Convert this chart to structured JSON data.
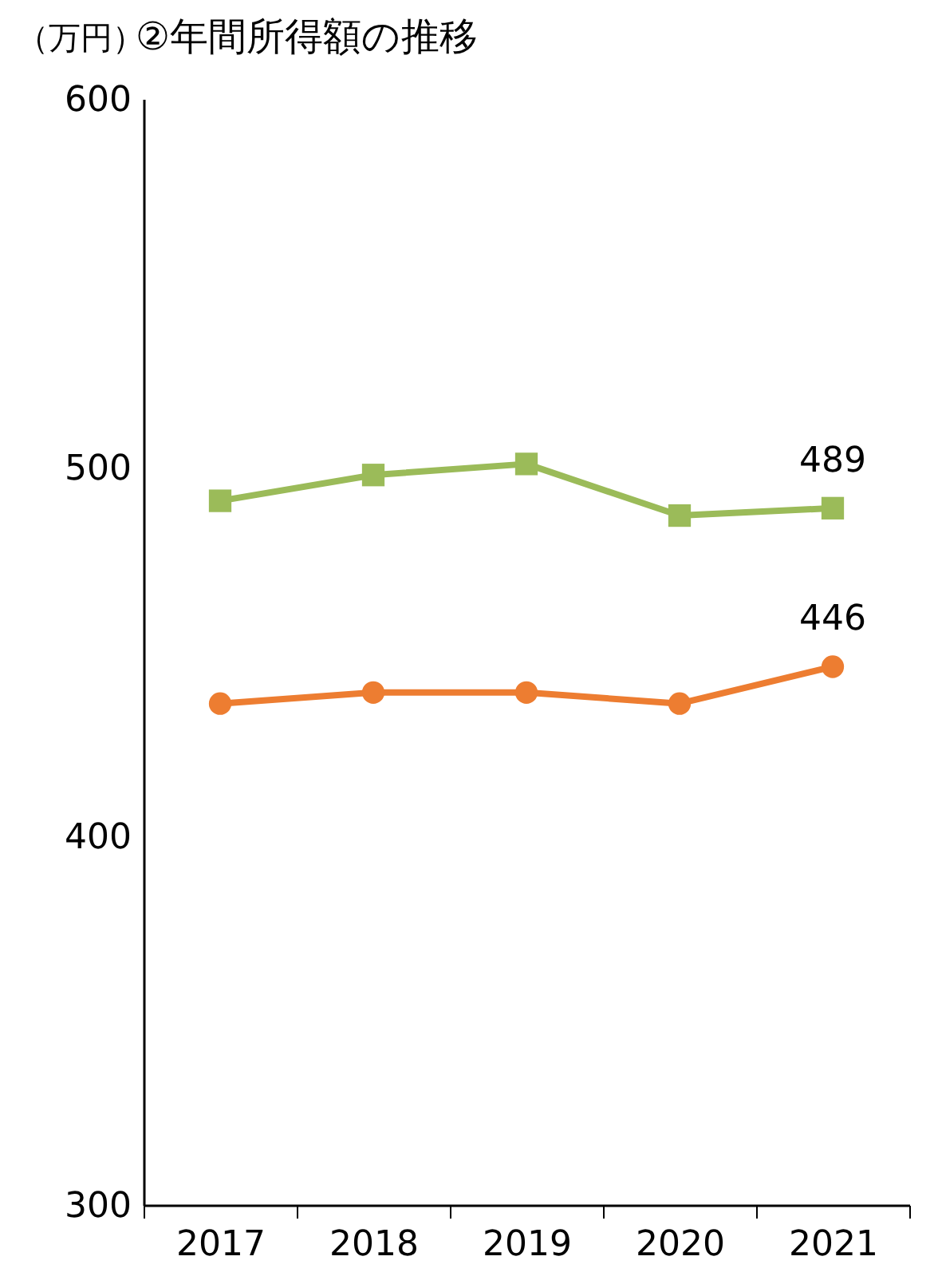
{
  "chart_data": {
    "type": "line",
    "title": "②年間所得額の推移",
    "ylabel": "（万円）",
    "categories": [
      "2017",
      "2018",
      "2019",
      "2020",
      "2021"
    ],
    "ylim": [
      300,
      600
    ],
    "yticks": [
      300,
      400,
      500,
      600
    ],
    "grid": false,
    "series": [
      {
        "color": "#9bbb59",
        "marker": "square",
        "values": [
          491,
          498,
          501,
          487,
          489
        ],
        "value_labels": [
          null,
          null,
          null,
          null,
          "489"
        ]
      },
      {
        "color": "#ed7d31",
        "marker": "circle",
        "values": [
          436,
          439,
          439,
          436,
          446
        ],
        "value_labels": [
          null,
          null,
          null,
          null,
          "446"
        ]
      }
    ]
  }
}
